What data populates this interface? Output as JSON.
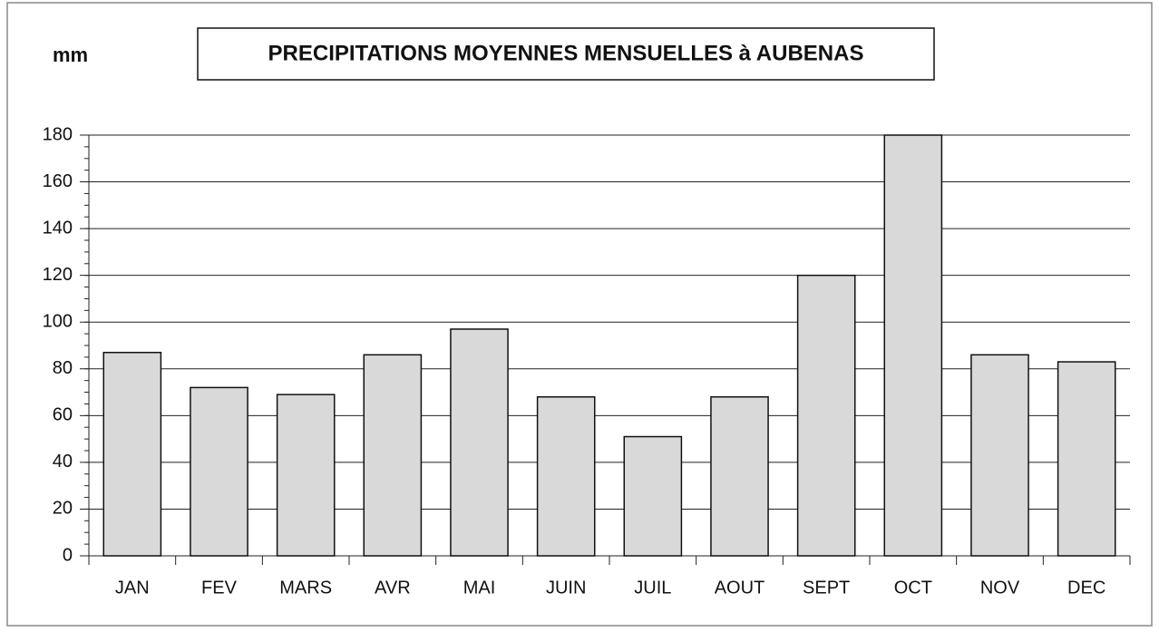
{
  "chart_data": {
    "type": "bar",
    "title": "PRECIPITATIONS MOYENNES MENSUELLES à AUBENAS",
    "y_label": "mm",
    "categories": [
      "JAN",
      "FEV",
      "MARS",
      "AVR",
      "MAI",
      "JUIN",
      "JUIL",
      "AOUT",
      "SEPT",
      "OCT",
      "NOV",
      "DEC"
    ],
    "values": [
      87,
      72,
      69,
      86,
      97,
      68,
      51,
      68,
      120,
      180,
      86,
      83
    ],
    "color": "#d9d9d9",
    "ylim": [
      0,
      180
    ],
    "yticks": [
      0,
      20,
      40,
      60,
      80,
      100,
      120,
      140,
      160,
      180
    ],
    "grid": true
  }
}
